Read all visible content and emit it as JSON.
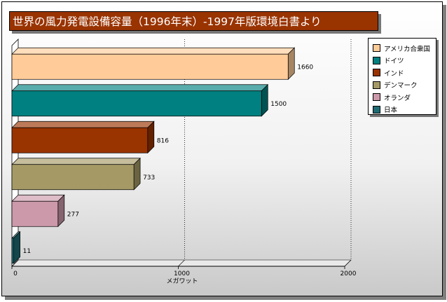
{
  "chart_data": {
    "type": "bar",
    "orientation": "horizontal",
    "title": "世界の風力発電設備容量（1996年末）-1997年版環境白書より",
    "xlabel": "メガワット",
    "categories": [
      "アメリカ合衆国",
      "ドイツ",
      "インド",
      "デンマーク",
      "オランダ",
      "日本"
    ],
    "values": [
      1660,
      1500,
      816,
      733,
      277,
      11
    ],
    "data_labels": [
      "1660",
      "1500",
      "816",
      "733",
      "277",
      "11"
    ],
    "colors": [
      "#ffcc99",
      "#008080",
      "#993300",
      "#a59a66",
      "#cc99aa",
      "#1f6b73"
    ],
    "xlim": [
      0,
      2000
    ],
    "xticks": [
      0,
      1000,
      2000
    ],
    "xtick_labels": [
      "0",
      "1000",
      "2000"
    ],
    "grid": "vertical-dotted",
    "legend": "right"
  }
}
